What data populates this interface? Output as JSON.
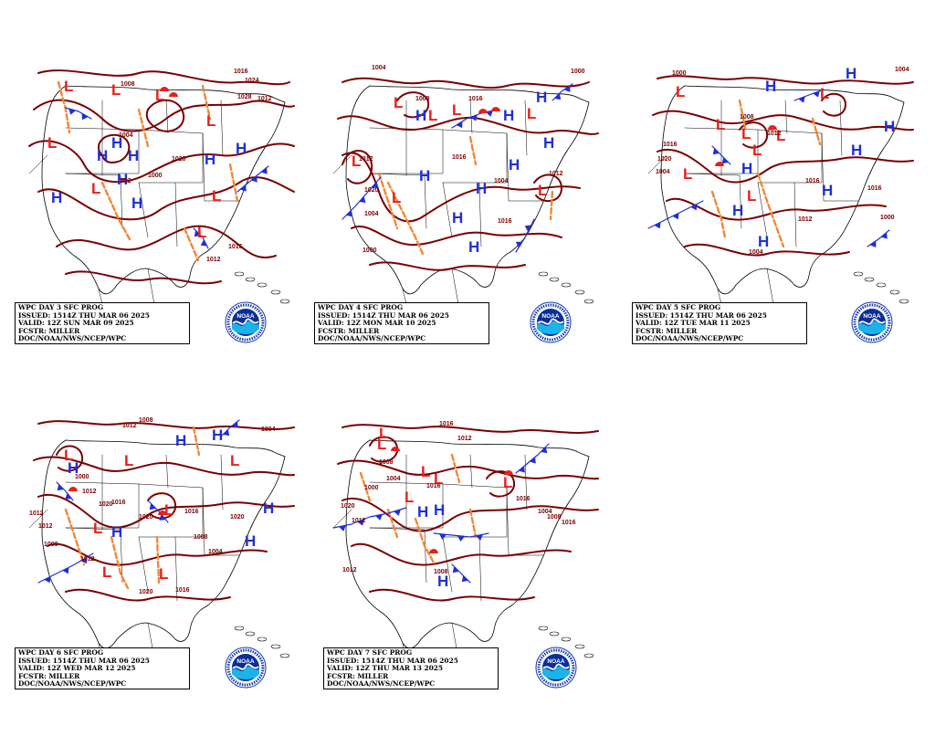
{
  "panels": [
    {
      "caption": [
        "WPC DAY 3 SFC PROG",
        "ISSUED: 1514Z THU MAR 06 2025",
        "VALID: 12Z SUN MAR 09 2025",
        "FCSTR: MILLER",
        "DOC/NOAA/NWS/NCEP/WPC"
      ],
      "isobar_labels": [
        "1008",
        "1016",
        "1024",
        "1028",
        "1012",
        "1004",
        "1000",
        "992",
        "1020",
        "1016",
        "1012"
      ]
    },
    {
      "caption": [
        "WPC DAY 4 SFC PROG",
        "ISSUED: 1514Z THU MAR 06 2025",
        "VALID: 12Z MON MAR 10 2025",
        "FCSTR: MILLER",
        "DOC/NOAA/NWS/NCEP/WPC"
      ],
      "isobar_labels": [
        "1004",
        "1000",
        "1008",
        "1016",
        "1012",
        "1020",
        "1004",
        "1012",
        "1016",
        "1016"
      ]
    },
    {
      "caption": [
        "WPC DAY 5 SFC PROG",
        "ISSUED: 1514Z THU MAR 06 2025",
        "VALID: 12Z TUE MAR 11 2025",
        "FCSTR: MILLER",
        "DOC/NOAA/NWS/NCEP/WPC"
      ],
      "isobar_labels": [
        "1000",
        "1004",
        "1008",
        "1012",
        "1016",
        "1020",
        "1004",
        "1016",
        "1012",
        "1016"
      ]
    },
    {
      "caption": [
        "WPC DAY 6 SFC PROG",
        "ISSUED: 1514Z THU MAR 06 2025",
        "VALID: 12Z WED MAR 12 2025",
        "FCSTR: MILLER",
        "DOC/NOAA/NWS/NCEP/WPC"
      ],
      "isobar_labels": [
        "1012",
        "1008",
        "1004",
        "1000",
        "1012",
        "1016",
        "1020",
        "1020",
        "1016",
        "1012"
      ]
    },
    {
      "caption": [
        "WPC DAY 7 SFC PROG",
        "ISSUED: 1514Z THU MAR 06 2025",
        "VALID: 12Z THU MAR 13 2025",
        "FCSTR: MILLER",
        "DOC/NOAA/NWS/NCEP/WPC"
      ],
      "isobar_labels": [
        "1016",
        "1012",
        "1008",
        "1004",
        "1000",
        "1016",
        "1020",
        "1012",
        "1016",
        "1008"
      ]
    }
  ],
  "logo_text": "NOAA",
  "colors": {
    "high": "#1f2fd6",
    "low": "#e8201a",
    "isobar": "#7a0000",
    "trough": "#f0883a",
    "front": "#1f2fd6",
    "background": "#ffffff"
  }
}
